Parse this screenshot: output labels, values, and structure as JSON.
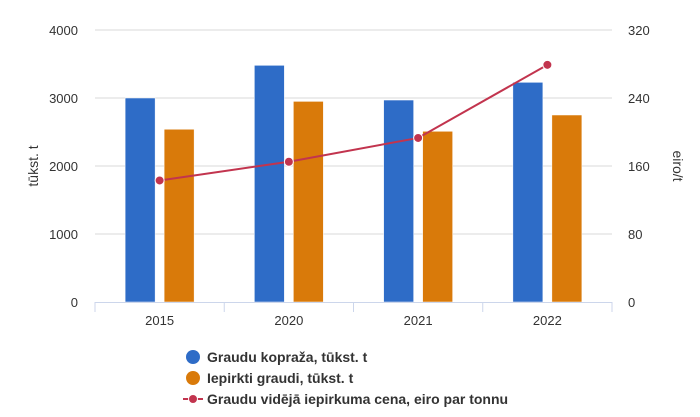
{
  "chart_data": {
    "type": "bar",
    "categories": [
      "2015",
      "2020",
      "2021",
      "2022"
    ],
    "series": [
      {
        "name": "Graudu kopraža, tūkst. t",
        "kind": "bar",
        "axis": "left",
        "color": "#2e6cc7",
        "values": [
          3000,
          3480,
          2970,
          3230
        ]
      },
      {
        "name": "Iepirkti graudi, tūkst. t",
        "kind": "bar",
        "axis": "left",
        "color": "#d97a0a",
        "values": [
          2540,
          2950,
          2510,
          2750
        ]
      },
      {
        "name": "Graudu vidējā iepirkuma cena, eiro par tonnu",
        "kind": "line",
        "axis": "right",
        "color": "#c2344e",
        "values": [
          143,
          165,
          193,
          279
        ]
      }
    ],
    "y_left": {
      "label": "tūkst. t",
      "min": 0,
      "max": 4000,
      "ticks": [
        "0",
        "1000",
        "2000",
        "3000",
        "4000"
      ]
    },
    "y_right": {
      "label": "eiro/t",
      "min": 0,
      "max": 320,
      "ticks": [
        "0",
        "80",
        "160",
        "240",
        "320"
      ]
    },
    "grid": true,
    "legend_position": "bottom-center"
  }
}
